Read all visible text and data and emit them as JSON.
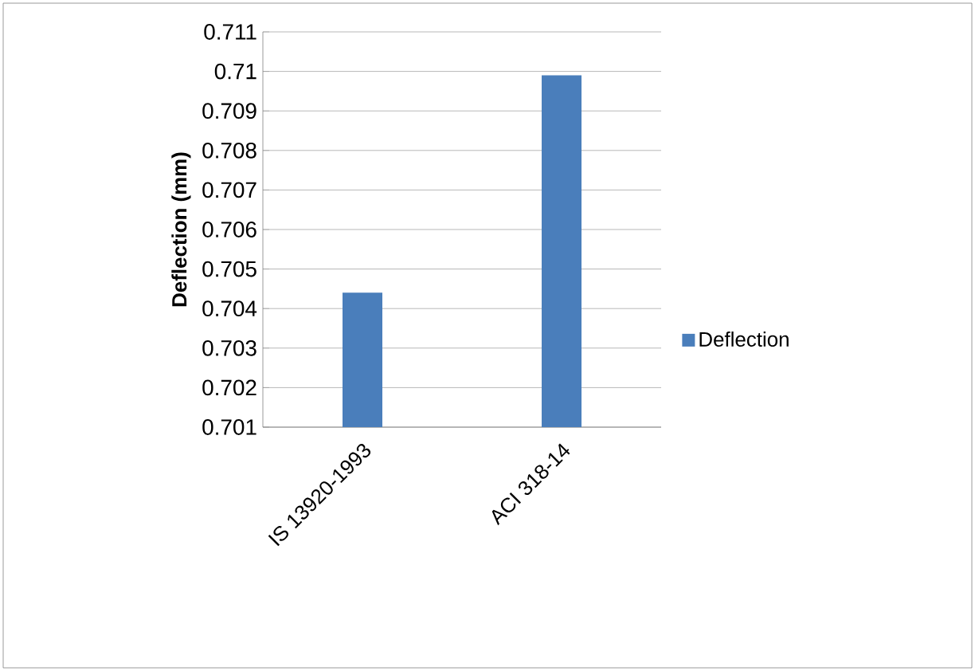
{
  "chart_data": {
    "type": "bar",
    "ylabel": "Deflection (mm)",
    "categories": [
      "IS 13920-1993",
      "ACI 318-14"
    ],
    "series": [
      {
        "name": "Deflection",
        "color": "#4a7ebb",
        "values": [
          0.7044,
          0.7099
        ]
      }
    ],
    "ylim": [
      0.701,
      0.711
    ],
    "yticks": [
      0.701,
      0.702,
      0.703,
      0.704,
      0.705,
      0.706,
      0.707,
      0.708,
      0.709,
      0.71,
      0.711
    ],
    "grid": "y",
    "legend": "right"
  }
}
